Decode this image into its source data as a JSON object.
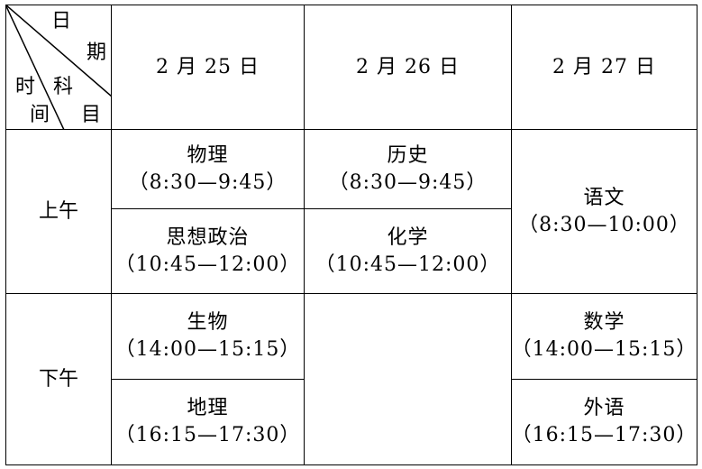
{
  "corner": {
    "date_label_1": "日",
    "date_label_2": "期",
    "subject_label_1": "科",
    "subject_label_2": "目",
    "time_label_1": "时",
    "time_label_2": "间"
  },
  "dates": [
    "2 月 25 日",
    "2 月 26 日",
    "2 月 27 日"
  ],
  "periods": [
    "上午",
    "下午"
  ],
  "exams": {
    "d25_am1": {
      "subject": "物理",
      "time": "（8:30—9:45）"
    },
    "d25_am2": {
      "subject": "思想政治",
      "time": "（10:45—12:00）"
    },
    "d26_am1": {
      "subject": "历史",
      "time": "（8:30—9:45）"
    },
    "d26_am2": {
      "subject": "化学",
      "time": "（10:45—12:00）"
    },
    "d27_am": {
      "subject": "语文",
      "time": "（8:30—10:00）"
    },
    "d25_pm1": {
      "subject": "生物",
      "time": "（14:00—15:15）"
    },
    "d25_pm2": {
      "subject": "地理",
      "time": "（16:15—17:30）"
    },
    "d27_pm1": {
      "subject": "数学",
      "time": "（14:00—15:15）"
    },
    "d27_pm2": {
      "subject": "外语",
      "time": "（16:15—17:30）"
    }
  }
}
